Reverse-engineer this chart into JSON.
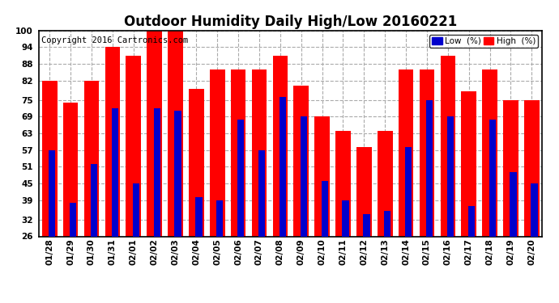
{
  "title": "Outdoor Humidity Daily High/Low 20160221",
  "copyright": "Copyright 2016 Cartronics.com",
  "legend_low": "Low  (%)",
  "legend_high": "High  (%)",
  "dates": [
    "01/28",
    "01/29",
    "01/30",
    "01/31",
    "02/01",
    "02/02",
    "02/03",
    "02/04",
    "02/05",
    "02/06",
    "02/07",
    "02/08",
    "02/09",
    "02/10",
    "02/11",
    "02/12",
    "02/13",
    "02/14",
    "02/15",
    "02/16",
    "02/17",
    "02/18",
    "02/19",
    "02/20"
  ],
  "high_values": [
    82,
    74,
    82,
    94,
    91,
    100,
    100,
    79,
    86,
    86,
    86,
    91,
    80,
    69,
    64,
    58,
    64,
    86,
    86,
    91,
    78,
    86,
    75,
    75
  ],
  "low_values": [
    57,
    38,
    52,
    72,
    45,
    72,
    71,
    40,
    39,
    68,
    57,
    76,
    69,
    46,
    39,
    34,
    35,
    58,
    75,
    69,
    37,
    68,
    49,
    45
  ],
  "bar_color_high": "#FF0000",
  "bar_color_low": "#0000CC",
  "bg_color": "#FFFFFF",
  "plot_bg_color": "#FFFFFF",
  "grid_color": "#AAAAAA",
  "ylim_min": 26,
  "ylim_max": 100,
  "yticks": [
    26,
    32,
    39,
    45,
    51,
    57,
    63,
    69,
    75,
    82,
    88,
    94,
    100
  ],
  "title_fontsize": 12,
  "tick_fontsize": 7.5,
  "copyright_fontsize": 7.5
}
